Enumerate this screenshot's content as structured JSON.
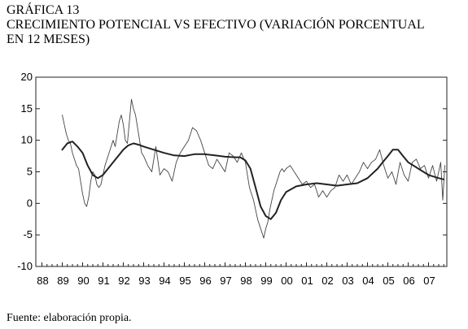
{
  "heading": {
    "label": "GRÁFICA 13",
    "line1": "CRECIMIENTO POTENCIAL VS EFECTIVO (VARIACIÓN PORCENTUAL",
    "line2": "EN 12 MESES)"
  },
  "source": "Fuente: elaboración propia.",
  "chart_data": {
    "type": "line",
    "title": "",
    "xlabel": "",
    "ylabel": "",
    "x_range": [
      1987.7,
      2007.9
    ],
    "ylim": [
      -10,
      20
    ],
    "yticks": [
      -10,
      -5,
      0,
      5,
      10,
      15,
      20
    ],
    "ytick_labels": [
      "-10",
      "-5",
      "0",
      "5",
      "10",
      "15",
      "20"
    ],
    "xtick_labels": [
      "88",
      "89",
      "90",
      "91",
      "92",
      "93",
      "94",
      "95",
      "96",
      "97",
      "98",
      "99",
      "00",
      "01",
      "02",
      "03",
      "04",
      "05",
      "06",
      "07"
    ],
    "grid": false,
    "legend": "none",
    "series": [
      {
        "style": "thin",
        "color": "#444444",
        "x": [
          1989.0,
          1989.1,
          1989.2,
          1989.3,
          1989.4,
          1989.5,
          1989.6,
          1989.7,
          1989.8,
          1989.9,
          1990.0,
          1990.1,
          1990.2,
          1990.3,
          1990.4,
          1990.5,
          1990.6,
          1990.7,
          1990.8,
          1990.9,
          1991.0,
          1991.1,
          1991.2,
          1991.3,
          1991.4,
          1991.5,
          1991.6,
          1991.7,
          1991.8,
          1991.9,
          1992.0,
          1992.1,
          1992.2,
          1992.3,
          1992.4,
          1992.5,
          1992.6,
          1992.7,
          1992.8,
          1992.9,
          1993.0,
          1993.2,
          1993.4,
          1993.6,
          1993.8,
          1994.0,
          1994.2,
          1994.4,
          1994.6,
          1994.8,
          1995.0,
          1995.2,
          1995.4,
          1995.6,
          1995.8,
          1996.0,
          1996.2,
          1996.4,
          1996.6,
          1996.8,
          1997.0,
          1997.2,
          1997.4,
          1997.6,
          1997.8,
          1998.0,
          1998.2,
          1998.4,
          1998.6,
          1998.8,
          1998.9,
          1999.0,
          1999.1,
          1999.2,
          1999.3,
          1999.4,
          1999.5,
          1999.6,
          1999.7,
          1999.8,
          1999.9,
          2000.0,
          2000.2,
          2000.4,
          2000.6,
          2000.8,
          2001.0,
          2001.2,
          2001.4,
          2001.6,
          2001.8,
          2002.0,
          2002.2,
          2002.4,
          2002.6,
          2002.8,
          2003.0,
          2003.2,
          2003.4,
          2003.6,
          2003.8,
          2004.0,
          2004.2,
          2004.4,
          2004.6,
          2004.8,
          2005.0,
          2005.2,
          2005.4,
          2005.6,
          2005.8,
          2006.0,
          2006.2,
          2006.4,
          2006.6,
          2006.8,
          2007.0,
          2007.2,
          2007.4,
          2007.6,
          2007.7,
          2007.8
        ],
        "y": [
          14.0,
          12.5,
          11.0,
          10.0,
          9.5,
          8.0,
          7.0,
          6.0,
          5.5,
          3.5,
          1.5,
          0.0,
          -0.5,
          1.0,
          3.5,
          5.0,
          4.5,
          3.0,
          2.5,
          3.0,
          4.5,
          6.0,
          7.0,
          8.0,
          9.0,
          10.0,
          9.0,
          11.0,
          13.0,
          14.0,
          12.5,
          10.0,
          9.5,
          13.0,
          16.5,
          15.0,
          14.0,
          12.0,
          10.0,
          8.0,
          7.5,
          6.0,
          5.0,
          9.0,
          4.5,
          5.5,
          5.0,
          3.5,
          6.5,
          8.0,
          9.0,
          10.0,
          12.0,
          11.5,
          10.0,
          8.0,
          6.0,
          5.5,
          7.0,
          6.0,
          5.0,
          8.0,
          7.5,
          6.5,
          8.0,
          6.5,
          2.5,
          0.5,
          -2.5,
          -4.5,
          -5.5,
          -4.0,
          -3.0,
          -1.0,
          0.5,
          2.0,
          3.0,
          4.0,
          5.0,
          5.5,
          5.0,
          5.5,
          6.0,
          5.0,
          4.0,
          3.0,
          3.5,
          2.5,
          3.0,
          1.0,
          2.0,
          1.0,
          2.0,
          2.5,
          4.5,
          3.5,
          4.5,
          3.0,
          4.0,
          5.0,
          6.5,
          5.5,
          6.5,
          7.0,
          8.5,
          6.0,
          4.0,
          5.0,
          3.0,
          6.5,
          4.5,
          3.5,
          6.5,
          7.0,
          5.5,
          6.0,
          4.0,
          6.0,
          3.5,
          6.5,
          0.5,
          6.0
        ]
      },
      {
        "style": "thick",
        "color": "#222222",
        "x": [
          1989.0,
          1989.25,
          1989.5,
          1989.75,
          1990.0,
          1990.25,
          1990.5,
          1990.75,
          1991.0,
          1991.25,
          1991.5,
          1991.75,
          1992.0,
          1992.25,
          1992.5,
          1992.75,
          1993.0,
          1993.5,
          1994.0,
          1994.5,
          1995.0,
          1995.5,
          1996.0,
          1996.5,
          1997.0,
          1997.5,
          1997.75,
          1998.0,
          1998.25,
          1998.5,
          1998.75,
          1999.0,
          1999.25,
          1999.5,
          1999.75,
          2000.0,
          2000.5,
          2001.0,
          2001.5,
          2002.0,
          2002.5,
          2003.0,
          2003.5,
          2004.0,
          2004.5,
          2004.75,
          2005.0,
          2005.25,
          2005.5,
          2005.75,
          2006.0,
          2006.5,
          2007.0,
          2007.5,
          2007.75
        ],
        "y": [
          8.5,
          9.5,
          9.8,
          9.0,
          8.0,
          6.0,
          4.5,
          4.0,
          4.5,
          5.5,
          6.5,
          7.5,
          8.5,
          9.2,
          9.5,
          9.3,
          9.0,
          8.5,
          8.0,
          7.6,
          7.5,
          7.8,
          7.8,
          7.6,
          7.4,
          7.3,
          7.3,
          6.8,
          5.5,
          2.5,
          -0.5,
          -2.0,
          -2.5,
          -1.5,
          0.5,
          1.8,
          2.7,
          3.0,
          3.2,
          3.0,
          2.8,
          3.0,
          3.2,
          4.0,
          5.5,
          6.5,
          7.5,
          8.5,
          8.5,
          7.5,
          6.5,
          5.5,
          4.5,
          4.0,
          3.8
        ]
      }
    ]
  }
}
